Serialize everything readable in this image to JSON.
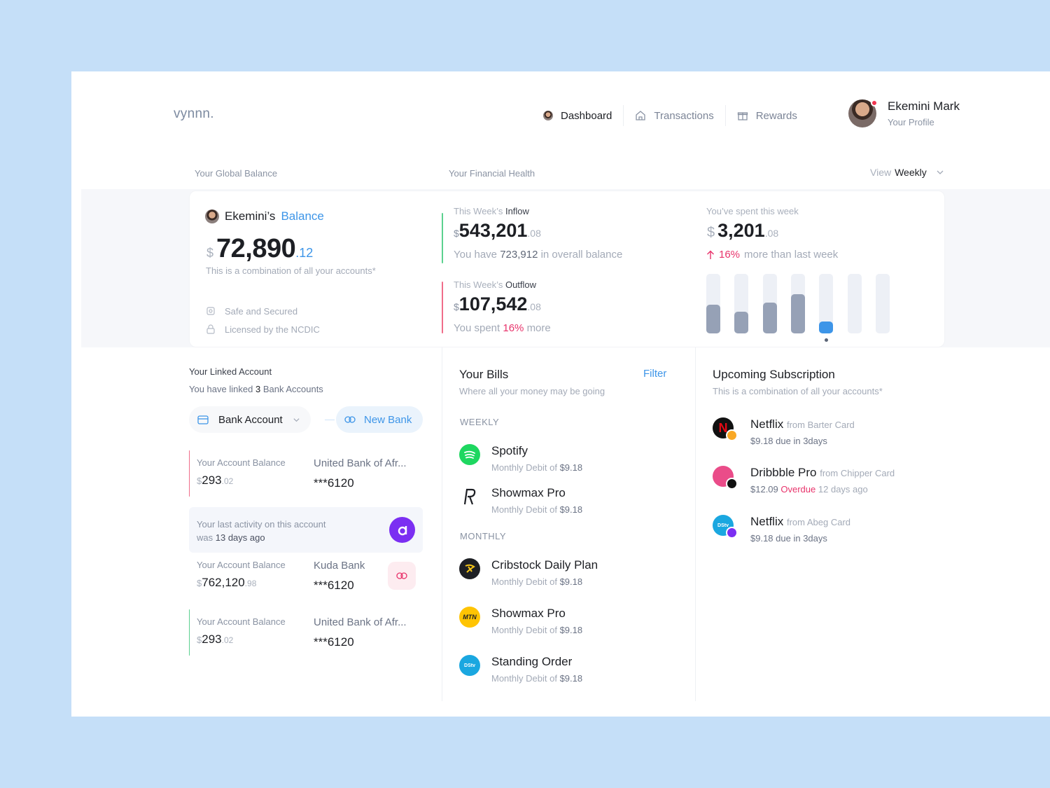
{
  "brand": "vynnn.",
  "nav": {
    "items": [
      {
        "label": "Dashboard",
        "icon": "user-avatar-icon",
        "active": true
      },
      {
        "label": "Transactions",
        "icon": "home-icon",
        "active": false
      },
      {
        "label": "Rewards",
        "icon": "gift-icon",
        "active": false
      }
    ]
  },
  "profile": {
    "name": "Ekemini Mark",
    "subtitle": "Your Profile"
  },
  "headers": {
    "global_balance": "Your Global Balance",
    "financial_health": "Your Financial Health",
    "view_prefix": "View",
    "view_value": "Weekly"
  },
  "balance": {
    "owner": "Ekemini’s",
    "label": "Balance",
    "currency": "$",
    "amount": "72,890",
    "cents": ".12",
    "note": "This is a combination of all your accounts*",
    "features": [
      "Safe and Secured",
      "Licensed by the NCDIC"
    ]
  },
  "inflow": {
    "label_prefix": "This Week’s",
    "label": "Inflow",
    "currency": "$",
    "amount": "543,201",
    "cents": ".08",
    "note_prefix": "You have",
    "note_value": "723,912",
    "note_suffix": "in overall balance"
  },
  "outflow": {
    "label_prefix": "This Week’s",
    "label": "Outflow",
    "currency": "$",
    "amount": "107,542",
    "cents": ".08",
    "note_prefix": "You spent",
    "note_value": "16%",
    "note_suffix": "more"
  },
  "spent": {
    "label": "You’ve spent this week",
    "currency": "$",
    "amount": "3,201",
    "cents": ".08",
    "change": "16%",
    "change_suffix": "more than last week",
    "bar_levels": [
      0.48,
      0.36,
      0.52,
      0.66,
      0.2,
      0,
      0
    ],
    "active_index": 4,
    "colors": {
      "bar": "#96a1b6",
      "active": "#3d95e8",
      "track": "#edf0f6"
    }
  },
  "linked": {
    "title": "Your Linked Account",
    "sub_prefix": "You have linked",
    "sub_value": "3",
    "sub_suffix": "Bank Accounts",
    "dropdown": "Bank Account",
    "new_bank": "New Bank",
    "activity": {
      "line1": "Your last activity on this account",
      "line2_prefix": "was",
      "line2_value": "13 days ago"
    },
    "accounts": [
      {
        "label": "Your Account Balance",
        "currency": "$",
        "amount": "293",
        "cents": ".02",
        "bank": "United Bank of Afr...",
        "number": "***6120",
        "accent": "#f06d8a"
      },
      {
        "label": "Your Account Balance",
        "currency": "$",
        "amount": "762,120",
        "cents": ".98",
        "bank": "Kuda Bank",
        "number": "***6120",
        "accent": ""
      },
      {
        "label": "Your Account Balance",
        "currency": "$",
        "amount": "293",
        "cents": ".02",
        "bank": "United Bank of Afr...",
        "number": "***6120",
        "accent": "#5bd18f"
      }
    ]
  },
  "bills": {
    "title": "Your Bills",
    "filter": "Filter",
    "sub": "Where all your money may be going",
    "weekly_label": "WEEKLY",
    "monthly_label": "MONTHLY",
    "weekly": [
      {
        "name": "Spotify",
        "prefix": "Monthly Debit of",
        "amount": "$9.18",
        "icon": "spotify-icon"
      },
      {
        "name": "Showmax Pro",
        "prefix": "Monthly Debit of",
        "amount": "$9.18",
        "icon": "showmax-icon"
      }
    ],
    "monthly": [
      {
        "name": "Cribstock Daily Plan",
        "prefix": "Monthly Debit of",
        "amount": "$9.18",
        "icon": "cribstock-icon"
      },
      {
        "name": "Showmax Pro",
        "prefix": "Monthly Debit of",
        "amount": "$9.18",
        "icon": "mtn-icon",
        "icon_text": "MTN"
      },
      {
        "name": "Standing Order",
        "prefix": "Monthly Debit of",
        "amount": "$9.18",
        "icon": "dstv-icon",
        "icon_text": "DStv"
      }
    ]
  },
  "subscriptions": {
    "title": "Upcoming Subscription",
    "sub": "This is a combination of all your accounts*",
    "items": [
      {
        "name": "Netflix",
        "from": "from Barter Card",
        "amount": "$9.18",
        "status": "",
        "due": "due in 3days",
        "icon": "netflix-icon"
      },
      {
        "name": "Dribbble Pro",
        "from": "from Chipper Card",
        "amount": "$12.09",
        "status": "Overdue",
        "due": "12 days ago",
        "icon": "dribbble-icon"
      },
      {
        "name": "Netflix",
        "from": "from Abeg Card",
        "amount": "$9.18",
        "status": "",
        "due": "due in 3days",
        "icon": "dstv-icon",
        "icon_text": "DStv"
      }
    ]
  },
  "colors": {
    "accent_blue": "#3d95e8",
    "accent_pink": "#e8336b",
    "inflow_green": "#5bd18f",
    "outflow_pink": "#f06d8a"
  }
}
